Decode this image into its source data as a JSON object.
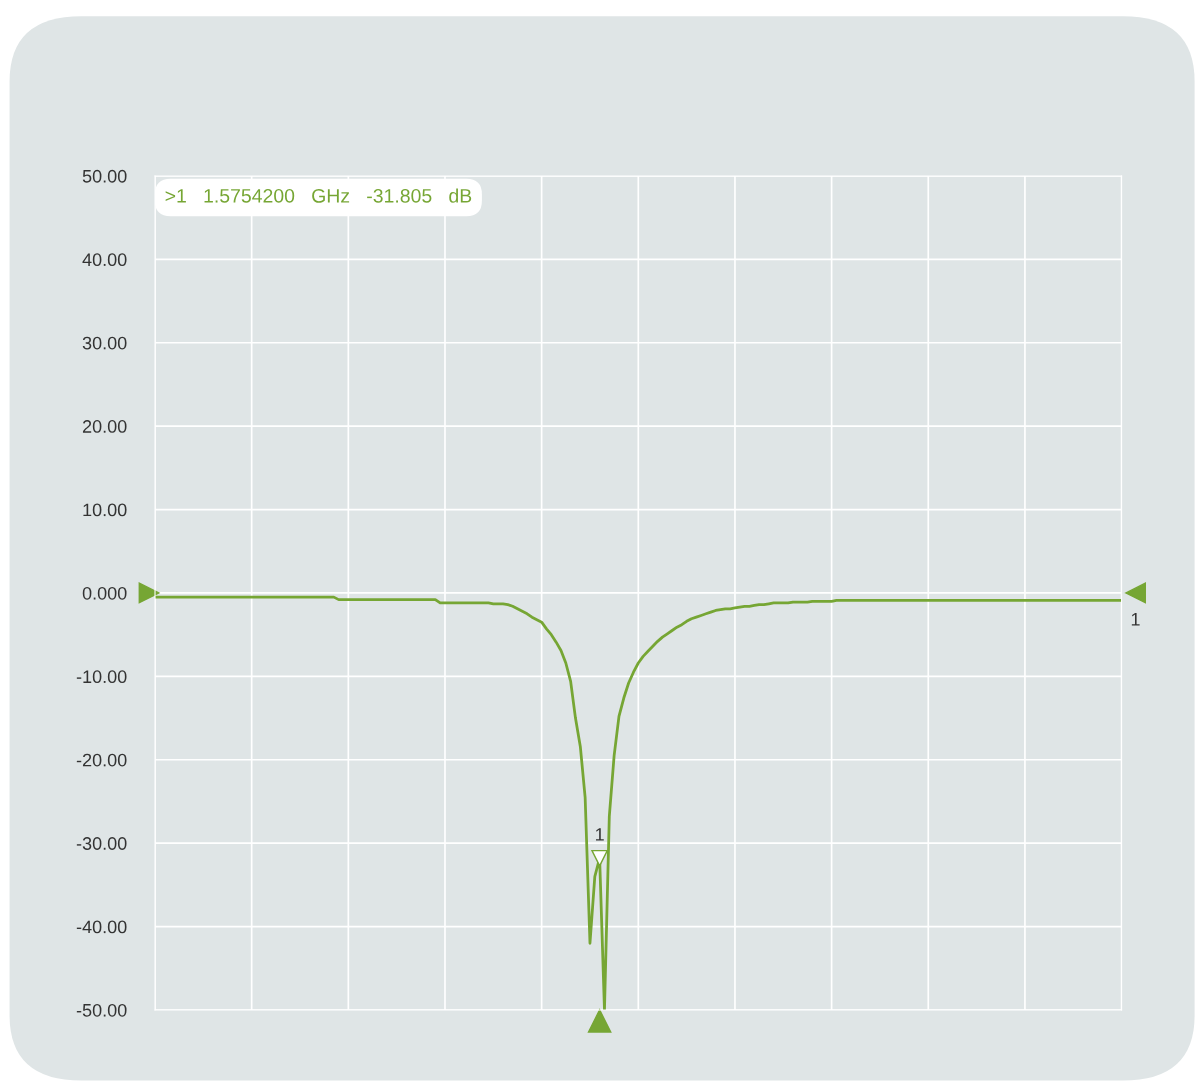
{
  "chart_data": {
    "type": "line",
    "categories": [
      null,
      null,
      null,
      null,
      null,
      null,
      null,
      null,
      null,
      null,
      null,
      null,
      null,
      null,
      null,
      null,
      null,
      null,
      null,
      null,
      null,
      null,
      null,
      null,
      null,
      null,
      null,
      null,
      null,
      null,
      null,
      null,
      null,
      null,
      null,
      null,
      null,
      null,
      null,
      null,
      null,
      null,
      null,
      null,
      null,
      null,
      null,
      null,
      null,
      null,
      null,
      null,
      null,
      null,
      null,
      null,
      null,
      null,
      null,
      null,
      null,
      null,
      null,
      null,
      null,
      null,
      null,
      null,
      null,
      null,
      null,
      null,
      null,
      null,
      null,
      null,
      null,
      null,
      null,
      null,
      null,
      null,
      null,
      null,
      null,
      null,
      null,
      null,
      null,
      null,
      null,
      null,
      null,
      null,
      null,
      null,
      null,
      null,
      null,
      null,
      null,
      null,
      null,
      null,
      null,
      null,
      null,
      null,
      null,
      null,
      null,
      null,
      null,
      null,
      null,
      null,
      null,
      null,
      null,
      null,
      null,
      null,
      null,
      null,
      null,
      null,
      null,
      null,
      null,
      null,
      null,
      null,
      null,
      null,
      null,
      null,
      null,
      null,
      null,
      null,
      null,
      null,
      null,
      null,
      null,
      null,
      null,
      null,
      null,
      null,
      null,
      null,
      null,
      null,
      null,
      null,
      null,
      null,
      null,
      null,
      null,
      null,
      null,
      null,
      null,
      null,
      null,
      null,
      null,
      null,
      null,
      null,
      null,
      null,
      null,
      null,
      null,
      null,
      null,
      null,
      null,
      null,
      null,
      null,
      null,
      null,
      null,
      null,
      null,
      null,
      null,
      null,
      null,
      null,
      null,
      null,
      null,
      null,
      null,
      null,
      null
    ],
    "series": [
      {
        "color": "#76a634",
        "values": [
          -0.5,
          -0.5,
          -0.5,
          -0.5,
          -0.5,
          -0.5,
          -0.5,
          -0.5,
          -0.5,
          -0.5,
          -0.5,
          -0.5,
          -0.5,
          -0.5,
          -0.5,
          -0.5,
          -0.5,
          -0.5,
          -0.5,
          -0.5,
          -0.5,
          -0.5,
          -0.5,
          -0.5,
          -0.5,
          -0.5,
          -0.5,
          -0.5,
          -0.5,
          -0.5,
          -0.5,
          -0.5,
          -0.5,
          -0.5,
          -0.5,
          -0.5,
          -0.5,
          -0.5,
          -0.8,
          -0.8,
          -0.8,
          -0.8,
          -0.8,
          -0.8,
          -0.8,
          -0.8,
          -0.8,
          -0.8,
          -0.8,
          -0.8,
          -0.8,
          -0.8,
          -0.8,
          -0.8,
          -0.8,
          -0.8,
          -0.8,
          -0.8,
          -0.8,
          -1.2,
          -1.2,
          -1.2,
          -1.2,
          -1.2,
          -1.2,
          -1.2,
          -1.2,
          -1.2,
          -1.2,
          -1.2,
          -1.3,
          -1.3,
          -1.3,
          -1.4,
          -1.6,
          -1.9,
          -2.2,
          -2.5,
          -2.9,
          -3.2,
          -3.5,
          -4.3,
          -5.0,
          -5.9,
          -6.9,
          -8.4,
          -10.6,
          -15.0,
          -18.4,
          -24.5,
          -42.0,
          -34.0,
          -31.8,
          -50.0,
          -26.8,
          -19.5,
          -14.8,
          -12.6,
          -10.8,
          -9.5,
          -8.4,
          -7.6,
          -7.0,
          -6.4,
          -5.8,
          -5.3,
          -4.9,
          -4.5,
          -4.1,
          -3.8,
          -3.4,
          -3.1,
          -2.9,
          -2.7,
          -2.5,
          -2.3,
          -2.1,
          -2.0,
          -1.9,
          -1.9,
          -1.8,
          -1.7,
          -1.6,
          -1.6,
          -1.5,
          -1.4,
          -1.4,
          -1.3,
          -1.2,
          -1.2,
          -1.2,
          -1.2,
          -1.1,
          -1.1,
          -1.1,
          -1.1,
          -1.0,
          -1.0,
          -1.0,
          -1.0,
          -1.0,
          -0.9,
          -0.9,
          -0.9,
          -0.9,
          -0.9,
          -0.9,
          -0.9,
          -0.9,
          -0.9,
          -0.9,
          -0.9,
          -0.9,
          -0.9,
          -0.9,
          -0.9,
          -0.9,
          -0.9,
          -0.9,
          -0.9,
          -0.9,
          -0.9,
          -0.9,
          -0.9,
          -0.9,
          -0.9,
          -0.9,
          -0.9,
          -0.9,
          -0.9,
          -0.9,
          -0.9,
          -0.9,
          -0.9,
          -0.9,
          -0.9,
          -0.9,
          -0.9,
          -0.9,
          -0.9,
          -0.9,
          -0.9,
          -0.9,
          -0.9,
          -0.9,
          -0.9,
          -0.9,
          -0.9,
          -0.9,
          -0.9,
          -0.9,
          -0.9,
          -0.9,
          -0.9,
          -0.9,
          -0.9,
          -0.9,
          -0.9,
          -0.9,
          -0.9,
          -0.9
        ]
      }
    ],
    "ylim": [
      -50,
      50
    ],
    "yticks": [
      {
        "value": 50,
        "label": "50.00"
      },
      {
        "value": 40,
        "label": "40.00"
      },
      {
        "value": 30,
        "label": "30.00"
      },
      {
        "value": 20,
        "label": "20.00"
      },
      {
        "value": 10,
        "label": "10.00"
      },
      {
        "value": 0,
        "label": "0.000"
      },
      {
        "value": -10,
        "label": "-10.00"
      },
      {
        "value": -20,
        "label": "-20.00"
      },
      {
        "value": -30,
        "label": "-30.00"
      },
      {
        "value": -40,
        "label": "-40.00"
      },
      {
        "value": -50,
        "label": "-50.00"
      }
    ],
    "tick_labels": "y",
    "grid": true,
    "annotations": [
      ">1   1.5754200   GHz   -31.805   dB",
      "1",
      {
        "text": "1",
        "y": -31.805
      }
    ]
  }
}
